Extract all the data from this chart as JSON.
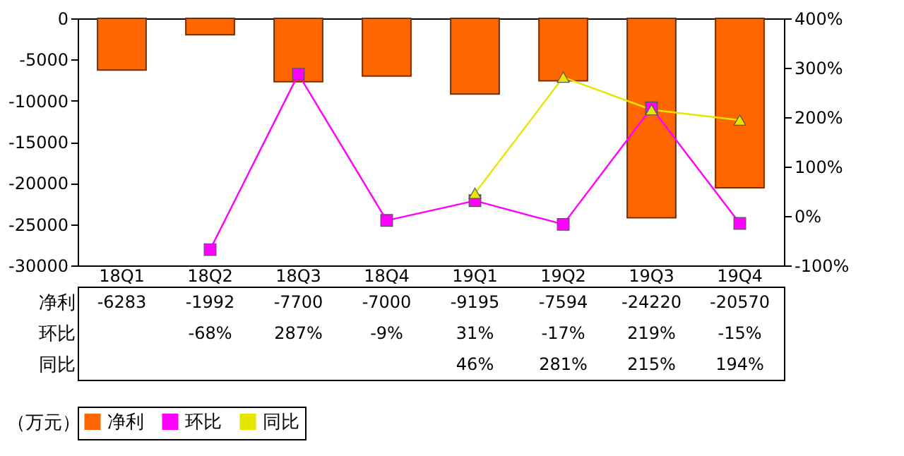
{
  "chart_data": {
    "type": "bar",
    "categories": [
      "18Q1",
      "18Q2",
      "18Q3",
      "18Q4",
      "19Q1",
      "19Q2",
      "19Q3",
      "19Q4"
    ],
    "ylim": [
      -30000,
      0
    ],
    "yticks": [
      -30000,
      -25000,
      -20000,
      -15000,
      -10000,
      -5000,
      0
    ],
    "y2lim": [
      -100,
      400
    ],
    "y2ticks": [
      {
        "value": -100,
        "label": "-100%"
      },
      {
        "value": 0,
        "label": "0%"
      },
      {
        "value": 100,
        "label": "100%"
      },
      {
        "value": 200,
        "label": "200%"
      },
      {
        "value": 300,
        "label": "300%"
      },
      {
        "value": 400,
        "label": "400%"
      }
    ],
    "series": [
      {
        "name": "净利",
        "color": "#ff6600",
        "values": [
          -6283,
          -1992,
          -7700,
          -7000,
          -9195,
          -7594,
          -24220,
          -20570
        ],
        "value_labels": [
          "-6283",
          "-1992",
          "-7700",
          "-7000",
          "-9195",
          "-7594",
          "-24220",
          "-20570"
        ]
      },
      {
        "name": "环比",
        "type": "line",
        "axis": "y2",
        "marker": "square",
        "color": "#ff00ff",
        "values": [
          null,
          -68,
          287,
          -9,
          31,
          -17,
          219,
          -15
        ],
        "value_labels": [
          null,
          "-68%",
          "287%",
          "-9%",
          "31%",
          "-17%",
          "219%",
          "-15%"
        ]
      },
      {
        "name": "同比",
        "type": "line",
        "axis": "y2",
        "marker": "triangle",
        "color": "#e6e600",
        "values": [
          null,
          null,
          null,
          null,
          46,
          281,
          215,
          194
        ],
        "value_labels": [
          null,
          null,
          null,
          null,
          "46%",
          "281%",
          "215%",
          "194%"
        ]
      }
    ],
    "legend": "bottom",
    "annotations": [
      "（万元）"
    ]
  }
}
